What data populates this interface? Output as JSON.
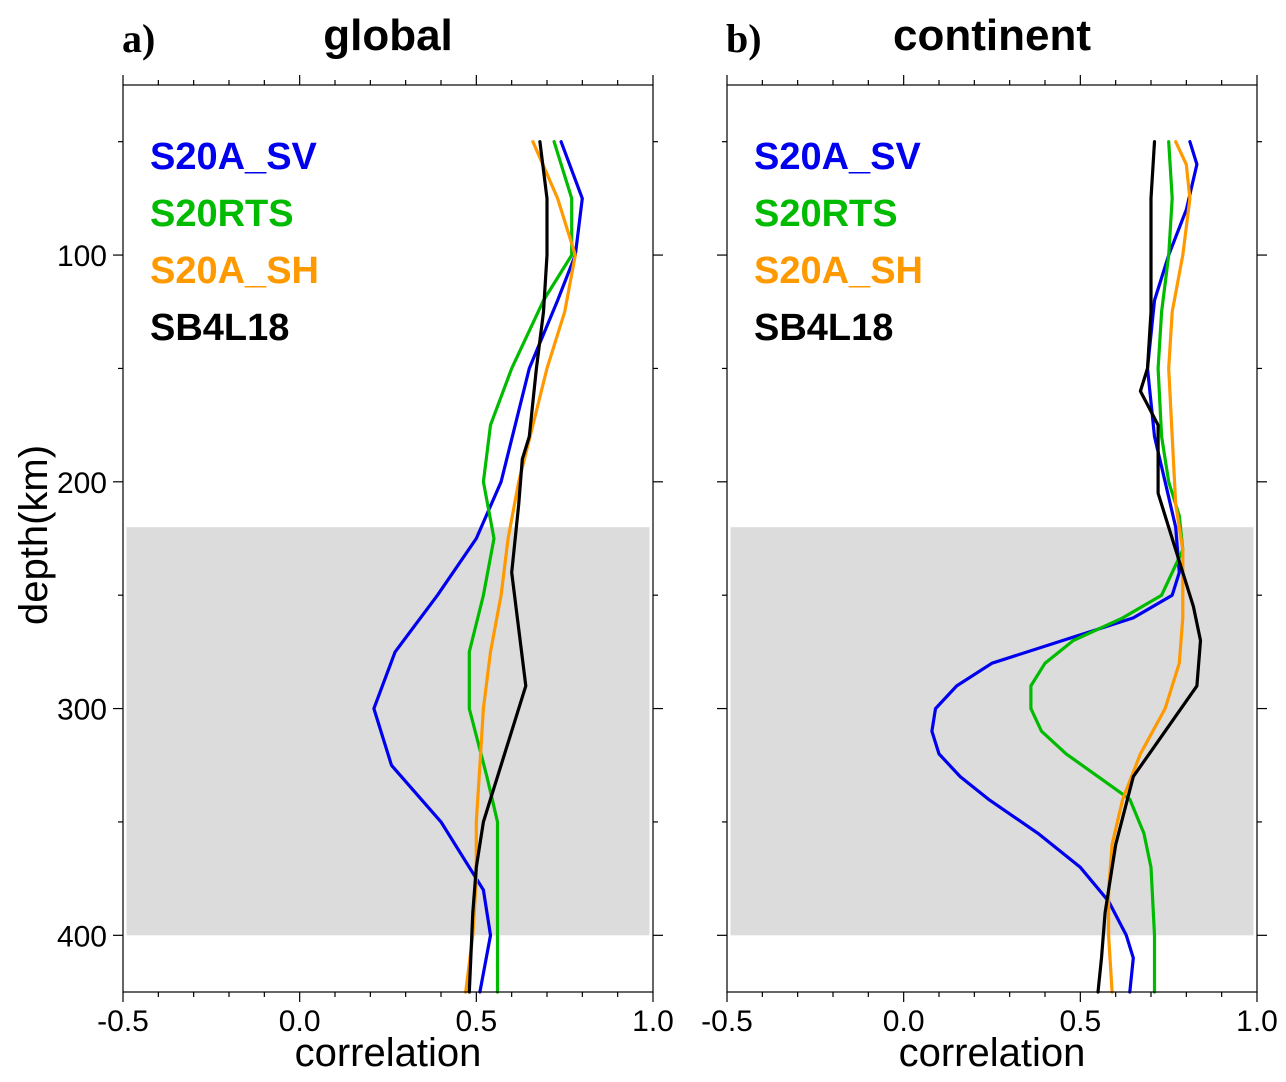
{
  "chart_data": [
    {
      "type": "line",
      "panel_letter": "a)",
      "title": "global",
      "xlabel": "correlation",
      "ylabel": "depth(km)",
      "xlim": [
        -0.5,
        1.0
      ],
      "ylim": [
        425,
        25
      ],
      "xticks": [
        "-0.5",
        "0.0",
        "0.5",
        "1.0"
      ],
      "yticks": [
        "100",
        "200",
        "300",
        "400"
      ],
      "shaded_band": {
        "x": [
          -0.49,
          0.99
        ],
        "y": [
          220,
          400
        ],
        "color": "#dcdcdc"
      },
      "legend": [
        {
          "label": "S20A_SV",
          "color": "#0000ee"
        },
        {
          "label": "S20RTS",
          "color": "#00bb00"
        },
        {
          "label": "S20A_SH",
          "color": "#ff9900"
        },
        {
          "label": "SB4L18",
          "color": "#000000"
        }
      ],
      "series": [
        {
          "name": "S20A_SV",
          "color": "#0000ee",
          "x": [
            0.74,
            0.8,
            0.78,
            0.73,
            0.65,
            0.61,
            0.57,
            0.5,
            0.39,
            0.27,
            0.21,
            0.26,
            0.4,
            0.48,
            0.52,
            0.54,
            0.51
          ],
          "y": [
            50,
            75,
            100,
            120,
            150,
            175,
            200,
            225,
            250,
            275,
            300,
            325,
            350,
            370,
            380,
            400,
            425
          ]
        },
        {
          "name": "S20RTS",
          "color": "#00bb00",
          "x": [
            0.72,
            0.77,
            0.77,
            0.69,
            0.6,
            0.54,
            0.52,
            0.55,
            0.52,
            0.48,
            0.48,
            0.53,
            0.56,
            0.56
          ],
          "y": [
            50,
            75,
            100,
            120,
            150,
            175,
            200,
            225,
            250,
            275,
            300,
            330,
            350,
            425
          ]
        },
        {
          "name": "S20A_SH",
          "color": "#ff9900",
          "x": [
            0.66,
            0.73,
            0.78,
            0.75,
            0.7,
            0.66,
            0.62,
            0.59,
            0.57,
            0.54,
            0.52,
            0.51,
            0.5,
            0.5,
            0.49,
            0.47
          ],
          "y": [
            50,
            75,
            100,
            125,
            150,
            175,
            200,
            225,
            250,
            275,
            300,
            325,
            350,
            375,
            400,
            425
          ]
        },
        {
          "name": "SB4L18",
          "color": "#000000",
          "x": [
            0.68,
            0.7,
            0.7,
            0.69,
            0.67,
            0.65,
            0.63,
            0.62,
            0.6,
            0.64,
            0.58,
            0.52,
            0.5,
            0.49,
            0.48
          ],
          "y": [
            50,
            75,
            100,
            125,
            150,
            180,
            190,
            210,
            240,
            290,
            320,
            350,
            370,
            390,
            425
          ]
        }
      ]
    },
    {
      "type": "line",
      "panel_letter": "b)",
      "title": "continent",
      "xlabel": "correlation",
      "ylabel": "",
      "xlim": [
        -0.5,
        1.0
      ],
      "ylim": [
        425,
        25
      ],
      "xticks": [
        "-0.5",
        "0.0",
        "0.5",
        "1.0"
      ],
      "yticks": [],
      "shaded_band": {
        "x": [
          -0.49,
          0.99
        ],
        "y": [
          220,
          400
        ],
        "color": "#dcdcdc"
      },
      "legend": [
        {
          "label": "S20A_SV",
          "color": "#0000ee"
        },
        {
          "label": "S20RTS",
          "color": "#00bb00"
        },
        {
          "label": "S20A_SH",
          "color": "#ff9900"
        },
        {
          "label": "SB4L18",
          "color": "#000000"
        }
      ],
      "series": [
        {
          "name": "S20A_SV",
          "color": "#0000ee",
          "x": [
            0.81,
            0.83,
            0.8,
            0.75,
            0.71,
            0.69,
            0.71,
            0.74,
            0.77,
            0.78,
            0.76,
            0.65,
            0.45,
            0.25,
            0.15,
            0.09,
            0.08,
            0.1,
            0.16,
            0.24,
            0.38,
            0.5,
            0.58,
            0.63,
            0.65,
            0.64
          ],
          "y": [
            50,
            60,
            80,
            100,
            120,
            150,
            180,
            200,
            220,
            240,
            250,
            260,
            270,
            280,
            290,
            300,
            310,
            320,
            330,
            340,
            355,
            370,
            385,
            400,
            410,
            425
          ]
        },
        {
          "name": "S20RTS",
          "color": "#00bb00",
          "x": [
            0.75,
            0.76,
            0.75,
            0.73,
            0.72,
            0.73,
            0.75,
            0.78,
            0.79,
            0.73,
            0.62,
            0.48,
            0.4,
            0.36,
            0.36,
            0.39,
            0.46,
            0.55,
            0.64,
            0.68,
            0.7,
            0.71,
            0.71
          ],
          "y": [
            50,
            75,
            100,
            125,
            150,
            180,
            200,
            215,
            230,
            250,
            260,
            270,
            280,
            290,
            300,
            310,
            320,
            330,
            340,
            355,
            370,
            400,
            425
          ]
        },
        {
          "name": "S20A_SH",
          "color": "#ff9900",
          "x": [
            0.77,
            0.8,
            0.81,
            0.79,
            0.76,
            0.75,
            0.76,
            0.77,
            0.79,
            0.79,
            0.78,
            0.74,
            0.67,
            0.62,
            0.59,
            0.58,
            0.58,
            0.59
          ],
          "y": [
            50,
            60,
            75,
            100,
            125,
            150,
            180,
            210,
            230,
            260,
            280,
            300,
            320,
            340,
            360,
            380,
            400,
            425
          ]
        },
        {
          "name": "SB4L18",
          "color": "#000000",
          "x": [
            0.71,
            0.7,
            0.7,
            0.7,
            0.69,
            0.67,
            0.72,
            0.72,
            0.77,
            0.82,
            0.84,
            0.83,
            0.65,
            0.6,
            0.57,
            0.56,
            0.55
          ],
          "y": [
            50,
            75,
            100,
            125,
            150,
            160,
            175,
            205,
            230,
            255,
            270,
            290,
            330,
            360,
            390,
            410,
            425
          ]
        }
      ]
    }
  ]
}
